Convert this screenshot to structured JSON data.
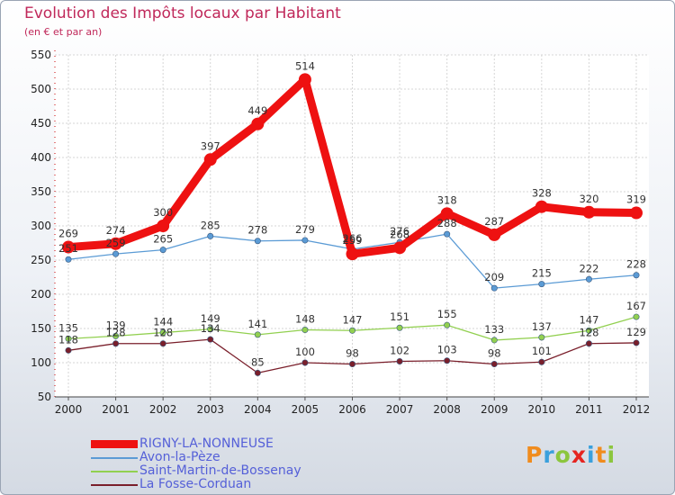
{
  "header": {
    "title": "Evolution des Impôts locaux par Habitant",
    "subtitle": "(en € et par an)"
  },
  "logo": {
    "text": "Proxiti",
    "letters": [
      {
        "ch": "P",
        "color": "#f08c1e"
      },
      {
        "ch": "r",
        "color": "#3aa0dc"
      },
      {
        "ch": "o",
        "color": "#8cc63e"
      },
      {
        "ch": "x",
        "color": "#e52420"
      },
      {
        "ch": "i",
        "color": "#3aa0dc"
      },
      {
        "ch": "t",
        "color": "#f08c1e"
      },
      {
        "ch": "i",
        "color": "#8cc63e"
      }
    ]
  },
  "chart_data": {
    "type": "line",
    "title": "Evolution des Impôts locaux par Habitant",
    "subtitle": "(en € et par an)",
    "xlabel": "",
    "ylabel": "",
    "ylim": [
      50,
      550
    ],
    "yticks": [
      50,
      100,
      150,
      200,
      250,
      300,
      350,
      400,
      450,
      500,
      550
    ],
    "grid": true,
    "categories": [
      "2000",
      "2001",
      "2002",
      "2003",
      "2004",
      "2005",
      "2006",
      "2007",
      "2008",
      "2009",
      "2010",
      "2011",
      "2012"
    ],
    "series": [
      {
        "name": "RIGNY-LA-NONNEUSE",
        "color": "#ee1111",
        "values": [
          269,
          274,
          300,
          397,
          449,
          514,
          259,
          268,
          318,
          287,
          328,
          320,
          319
        ],
        "labels": [
          "269",
          "274",
          "300",
          "397",
          "449",
          "514",
          "259",
          "268",
          "318",
          "287",
          "328",
          "320",
          "319"
        ]
      },
      {
        "name": "Avon-la-Pèze",
        "color": "#5b9bd5",
        "values": [
          251,
          259,
          265,
          285,
          278,
          279,
          266,
          276,
          288,
          209,
          215,
          222,
          228
        ],
        "labels": [
          "251",
          "259",
          "265",
          "285",
          "278",
          "279",
          "266",
          "276",
          "288",
          "209",
          "215",
          "222",
          "228"
        ]
      },
      {
        "name": "Saint-Martin-de-Bossenay",
        "color": "#92d050",
        "values": [
          135,
          139,
          144,
          149,
          141,
          148,
          147,
          151,
          155,
          133,
          137,
          147,
          167
        ],
        "labels": [
          "135",
          "139",
          "144",
          "149",
          "141",
          "148",
          "147",
          "151",
          "155",
          "133",
          "137",
          "147",
          "167"
        ]
      },
      {
        "name": "La Fosse-Corduan",
        "color": "#7a1f2b",
        "values": [
          118,
          128,
          128,
          134,
          85,
          100,
          98,
          102,
          103,
          98,
          101,
          128,
          129
        ],
        "labels": [
          "118",
          "128",
          "128",
          "134",
          "85",
          "100",
          "98",
          "102",
          "103",
          "98",
          "101",
          "128",
          "129"
        ]
      }
    ]
  }
}
